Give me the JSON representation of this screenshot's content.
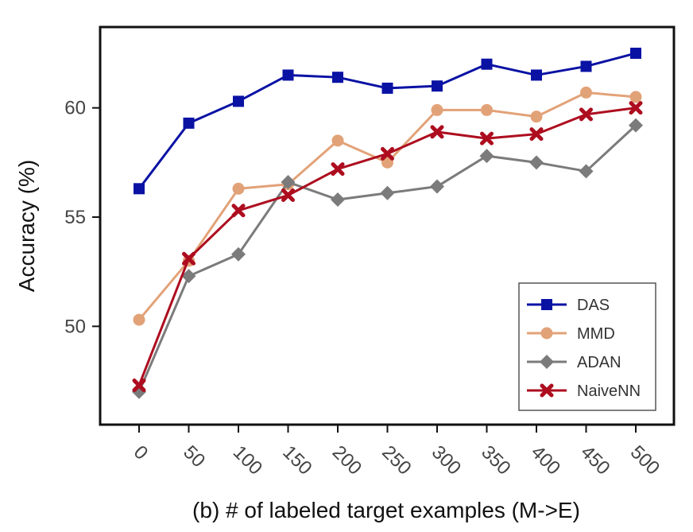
{
  "chart_data": {
    "type": "line",
    "title": "",
    "xlabel": "(b)  # of labeled target examples (M->E)",
    "ylabel": "Accuracy (%)",
    "categories": [
      "0",
      "50",
      "100",
      "150",
      "200",
      "250",
      "300",
      "350",
      "400",
      "450",
      "500"
    ],
    "ylim": [
      45.5,
      63.7
    ],
    "yticks": [
      50,
      55,
      60
    ],
    "ytick_labels": [
      "50",
      "55",
      "60"
    ],
    "grid": false,
    "legend_position": "bottom-right",
    "series": [
      {
        "name": "DAS",
        "color": "#0a12a4",
        "marker": "square",
        "values": [
          56.3,
          59.3,
          60.3,
          61.5,
          61.4,
          60.9,
          61.0,
          62.0,
          61.5,
          61.9,
          62.5
        ]
      },
      {
        "name": "MMD",
        "color": "#e2a278",
        "marker": "circle",
        "values": [
          50.3,
          53.0,
          56.3,
          56.5,
          58.5,
          57.5,
          59.9,
          59.9,
          59.6,
          60.7,
          60.5
        ]
      },
      {
        "name": "ADAN",
        "color": "#7b7b7b",
        "marker": "diamond",
        "values": [
          47.0,
          52.3,
          53.3,
          56.6,
          55.8,
          56.1,
          56.4,
          57.8,
          57.5,
          57.1,
          59.2
        ]
      },
      {
        "name": "NaiveNN",
        "color": "#ad0d1f",
        "marker": "x",
        "values": [
          47.3,
          53.1,
          55.3,
          56.0,
          57.2,
          57.9,
          58.9,
          58.6,
          58.8,
          59.7,
          60.0
        ]
      }
    ]
  }
}
